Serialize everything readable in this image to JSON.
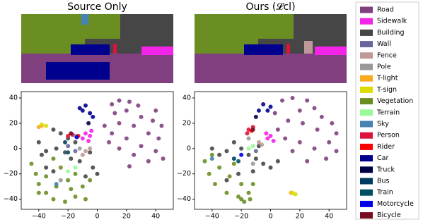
{
  "chart_data": [
    {
      "type": "scatter",
      "title": "Source Only",
      "xlim": [
        -52,
        52
      ],
      "ylim": [
        -48,
        45
      ],
      "xticks": [
        {
          "value": -40,
          "label": "−40"
        },
        {
          "value": -20,
          "label": "−20"
        },
        0,
        20,
        40
      ],
      "yticks": [
        {
          "value": -40,
          "label": "−40"
        },
        {
          "value": -20,
          "label": "−20"
        },
        0,
        20,
        40
      ],
      "grid": false,
      "series": [
        {
          "name": "Road",
          "color": "#804080",
          "x": [
            10,
            15,
            22,
            28,
            12,
            20,
            30,
            38,
            44,
            15,
            25,
            35,
            42,
            10,
            20,
            30,
            40,
            45,
            15,
            25,
            35,
            22,
            8,
            5,
            40
          ],
          "y": [
            35,
            38,
            37,
            34,
            28,
            30,
            25,
            22,
            18,
            20,
            18,
            12,
            8,
            12,
            8,
            2,
            -2,
            -8,
            0,
            -5,
            -10,
            -14,
            5,
            18,
            30
          ]
        },
        {
          "name": "Sidewalk",
          "color": "#f423e8",
          "x": [
            -8,
            -5,
            -10,
            -6,
            -4
          ],
          "y": [
            12,
            10,
            8,
            6,
            14
          ]
        },
        {
          "name": "Building",
          "color": "#464646",
          "x": [
            -40,
            -35,
            -38,
            -30,
            -25,
            -20,
            -15,
            -28,
            -22,
            -18,
            -12,
            -5,
            -3,
            0,
            -8,
            -30,
            -35
          ],
          "y": [
            5,
            -2,
            -5,
            15,
            12,
            8,
            5,
            0,
            -3,
            -8,
            -10,
            -3,
            -15,
            -20,
            -22,
            -18,
            -15
          ]
        },
        {
          "name": "Wall",
          "color": "#66669c",
          "x": [
            -20,
            -15
          ],
          "y": [
            2,
            -2
          ]
        },
        {
          "name": "Fence",
          "color": "#be9999",
          "x": [
            -8,
            -5,
            -10
          ],
          "y": [
            -2,
            0,
            -5
          ]
        },
        {
          "name": "Pole",
          "color": "#999999",
          "x": [
            -15,
            -12,
            -25
          ],
          "y": [
            10,
            0,
            -25
          ]
        },
        {
          "name": "T-light",
          "color": "#faaa1e",
          "x": [
            -38,
            -40
          ],
          "y": [
            18,
            17
          ]
        },
        {
          "name": "T-sign",
          "color": "#dcdc00",
          "x": [
            -38,
            -35
          ],
          "y": [
            19,
            18
          ]
        },
        {
          "name": "Vegetation",
          "color": "#6b8e23",
          "x": [
            -45,
            -42,
            -40,
            -35,
            -30,
            -22,
            -15,
            -10,
            -5,
            -20,
            -28,
            -35,
            -25,
            -15,
            -30,
            -18,
            -40,
            -8
          ],
          "y": [
            -12,
            -20,
            -28,
            -35,
            -40,
            -42,
            -38,
            -30,
            -25,
            -25,
            -30,
            -22,
            -15,
            -20,
            -8,
            -32,
            -35,
            -40
          ]
        },
        {
          "name": "Terrain",
          "color": "#98fb98",
          "x": [
            -15,
            -20
          ],
          "y": [
            -15,
            -18
          ]
        },
        {
          "name": "Sky",
          "color": "#4682b4",
          "x": [
            -28
          ],
          "y": [
            -28
          ]
        },
        {
          "name": "Person",
          "color": "#dc143c",
          "x": [
            -20,
            -17
          ],
          "y": [
            10,
            11
          ]
        },
        {
          "name": "Rider",
          "color": "#ff0000",
          "x": [
            -13
          ],
          "y": [
            10
          ]
        },
        {
          "name": "Car",
          "color": "#00008e",
          "x": [
            -10,
            -8,
            -5,
            -12,
            -3
          ],
          "y": [
            30,
            34,
            28,
            32,
            25
          ]
        },
        {
          "name": "Truck",
          "color": "#000046",
          "x": [
            -6
          ],
          "y": [
            20
          ]
        },
        {
          "name": "Bus",
          "color": "#003c64",
          "x": [
            -22
          ],
          "y": [
            5
          ]
        },
        {
          "name": "Train",
          "color": "#005064",
          "x": [
            -20
          ],
          "y": [
            -3
          ]
        },
        {
          "name": "Motorcycle",
          "color": "#0000e6",
          "x": [
            -14
          ],
          "y": [
            9
          ]
        },
        {
          "name": "Bicycle",
          "color": "#770b20",
          "x": [
            -18
          ],
          "y": [
            12
          ]
        }
      ]
    },
    {
      "type": "scatter",
      "title": "Ours (𝓛cl)",
      "xlim": [
        -52,
        52
      ],
      "ylim": [
        -48,
        45
      ],
      "xticks": [
        {
          "value": -40,
          "label": "−40"
        },
        {
          "value": -20,
          "label": "−20"
        },
        0,
        20,
        40
      ],
      "grid": false,
      "series": [
        {
          "x": [
            8,
            15,
            25,
            30,
            20,
            35,
            42,
            45,
            12,
            22,
            32,
            40,
            45,
            10,
            20,
            30,
            38,
            25,
            15,
            5,
            3
          ],
          "y": [
            38,
            40,
            38,
            32,
            30,
            25,
            20,
            12,
            22,
            20,
            15,
            5,
            -2,
            8,
            5,
            0,
            -8,
            -10,
            -2,
            15,
            28
          ]
        },
        {
          "x": [
            -2,
            0,
            2,
            -3
          ],
          "y": [
            8,
            10,
            6,
            12
          ]
        },
        {
          "x": [
            -40,
            -35,
            -30,
            -25,
            -20,
            -15,
            -10,
            -5,
            0,
            -22,
            -30,
            -12,
            5,
            -8
          ],
          "y": [
            0,
            -5,
            -2,
            5,
            0,
            -5,
            -8,
            -12,
            -15,
            -20,
            -25,
            -18,
            -10,
            2
          ]
        },
        {
          "x": [
            -10
          ],
          "y": [
            -2
          ]
        },
        {
          "x": [
            -8,
            -6
          ],
          "y": [
            5,
            3
          ]
        },
        {
          "x": [
            -15,
            -12
          ],
          "y": [
            8,
            -12
          ]
        },
        {
          "x": [
            14
          ],
          "y": [
            -35
          ]
        },
        {
          "x": [
            15,
            17
          ],
          "y": [
            -35,
            -36
          ]
        },
        {
          "x": [
            -45,
            -42,
            -38,
            -30,
            -22,
            -15,
            -20,
            -28,
            -35,
            -25,
            -12,
            -40,
            -18,
            -14,
            -20
          ],
          "y": [
            -10,
            -20,
            -28,
            -35,
            -38,
            -35,
            -28,
            -22,
            -15,
            -12,
            -28,
            -5,
            -42,
            -40,
            -40
          ]
        },
        {
          "x": [
            -15,
            -12
          ],
          "y": [
            0,
            2
          ]
        },
        {
          "x": [
            -40
          ],
          "y": [
            -8
          ]
        },
        {
          "x": [
            -15,
            -12,
            -16
          ],
          "y": [
            15,
            17,
            12
          ]
        },
        {
          "x": [
            -13
          ],
          "y": [
            14
          ]
        },
        {
          "x": [
            -5,
            -2,
            -8,
            0
          ],
          "y": [
            35,
            30,
            30,
            33
          ]
        },
        {
          "x": [
            -10
          ],
          "y": [
            25
          ]
        },
        {
          "x": [
            -25
          ],
          "y": [
            -8
          ]
        },
        {
          "x": [
            -22
          ],
          "y": [
            -10
          ]
        },
        {
          "x": [
            -20
          ],
          "y": [
            -5
          ]
        },
        {
          "x": [
            -12
          ],
          "y": [
            15
          ]
        }
      ]
    }
  ]
}
